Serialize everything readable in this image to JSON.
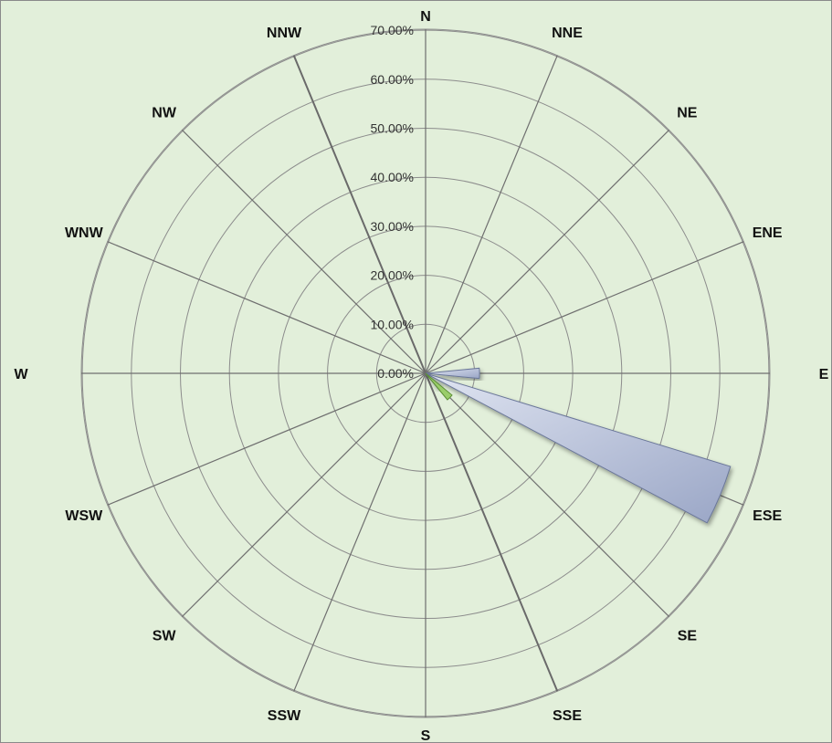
{
  "chart_data": {
    "type": "radar",
    "subtype": "wind-rose",
    "title": "",
    "directions": [
      "N",
      "NNE",
      "NE",
      "ENE",
      "E",
      "ESE",
      "SE",
      "SSE",
      "S",
      "SSW",
      "SW",
      "WSW",
      "W",
      "WNW",
      "NW",
      "NNW"
    ],
    "radial_ticks": [
      "0.00%",
      "10.00%",
      "20.00%",
      "30.00%",
      "40.00%",
      "50.00%",
      "60.00%",
      "70.00%"
    ],
    "rlim": [
      0,
      70
    ],
    "grid": true,
    "legend": "none",
    "series": [
      {
        "color": "#b8c2dc",
        "values": [
          0,
          0,
          0,
          0,
          11,
          65,
          4,
          0,
          0,
          0,
          0,
          0,
          0,
          0,
          0,
          0
        ]
      },
      {
        "color": "#9acd6a",
        "values": [
          0,
          0,
          0,
          0,
          0,
          0,
          7,
          0,
          0,
          0,
          0,
          0,
          0,
          0,
          0,
          0
        ]
      }
    ]
  }
}
